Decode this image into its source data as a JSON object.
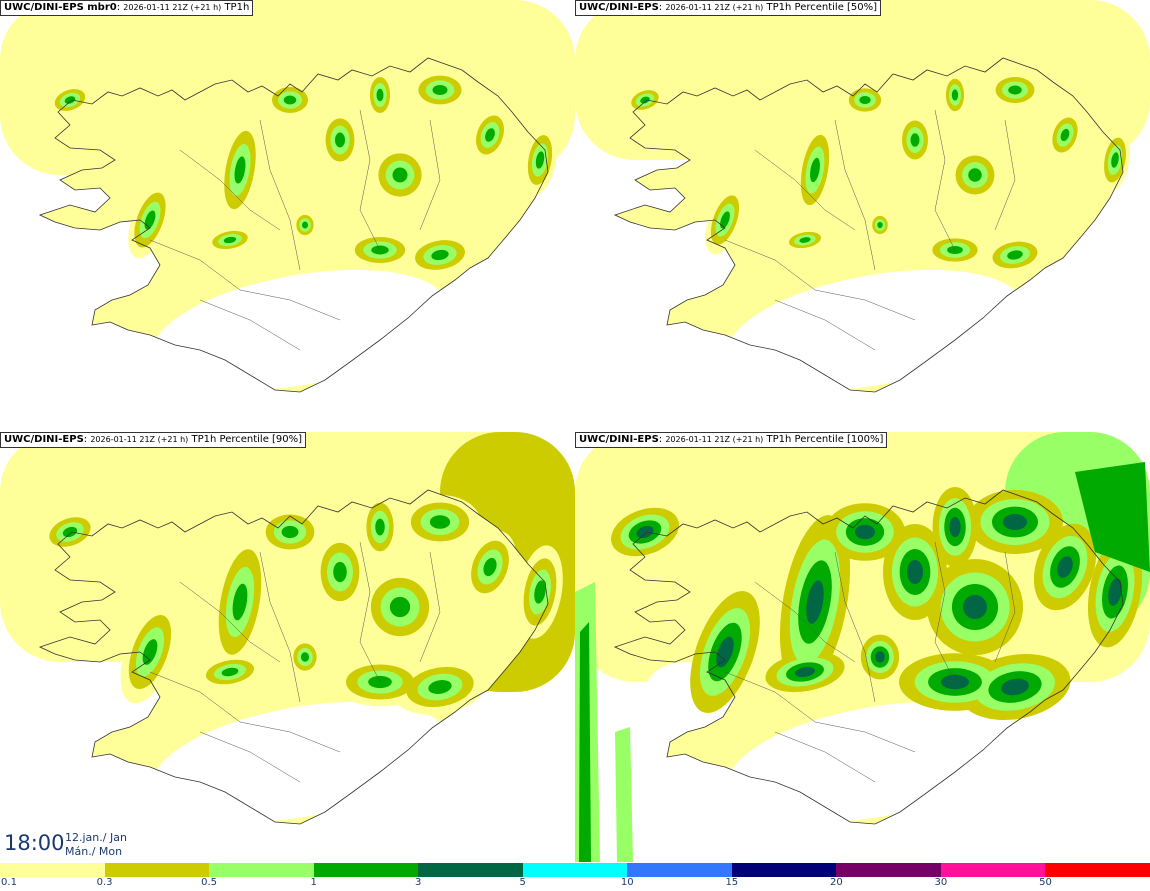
{
  "panels": [
    {
      "id": "tl",
      "model": "UWC/DINI-EPS mbr0",
      "run": "2026-01-11 21Z (+21 h)",
      "product": "TP1h"
    },
    {
      "id": "tr",
      "model": "UWC/DINI-EPS",
      "run": "2026-01-11 21Z (+21 h)",
      "product": "TP1h Percentile [50%]"
    },
    {
      "id": "bl",
      "model": "UWC/DINI-EPS",
      "run": "2026-01-11 21Z (+21 h)",
      "product": "TP1h Percentile [90%]"
    },
    {
      "id": "br",
      "model": "UWC/DINI-EPS",
      "run": "2026-01-11 21Z (+21 h)",
      "product": "TP1h Percentile [100%]"
    }
  ],
  "valid_time": {
    "time": "18:00",
    "date_line1": "12.jan./ Jan",
    "date_line2": "Mán./ Mon"
  },
  "colorbar": {
    "labels": [
      "0.1",
      "0.3",
      "0.5",
      "1",
      "3",
      "5",
      "10",
      "15",
      "20",
      "30",
      "50"
    ],
    "colors": [
      "#ffff99",
      "#cccc00",
      "#99ff66",
      "#00aa00",
      "#006644",
      "#00ffff",
      "#3377ff",
      "#000077",
      "#770066",
      "#ff1199",
      "#ff0000"
    ]
  },
  "map_colors": {
    "light": "#ffff99",
    "olive": "#cccc00",
    "lightgreen": "#99ff66",
    "green": "#00aa00",
    "darkgreen": "#006644",
    "coast": "#333333"
  }
}
